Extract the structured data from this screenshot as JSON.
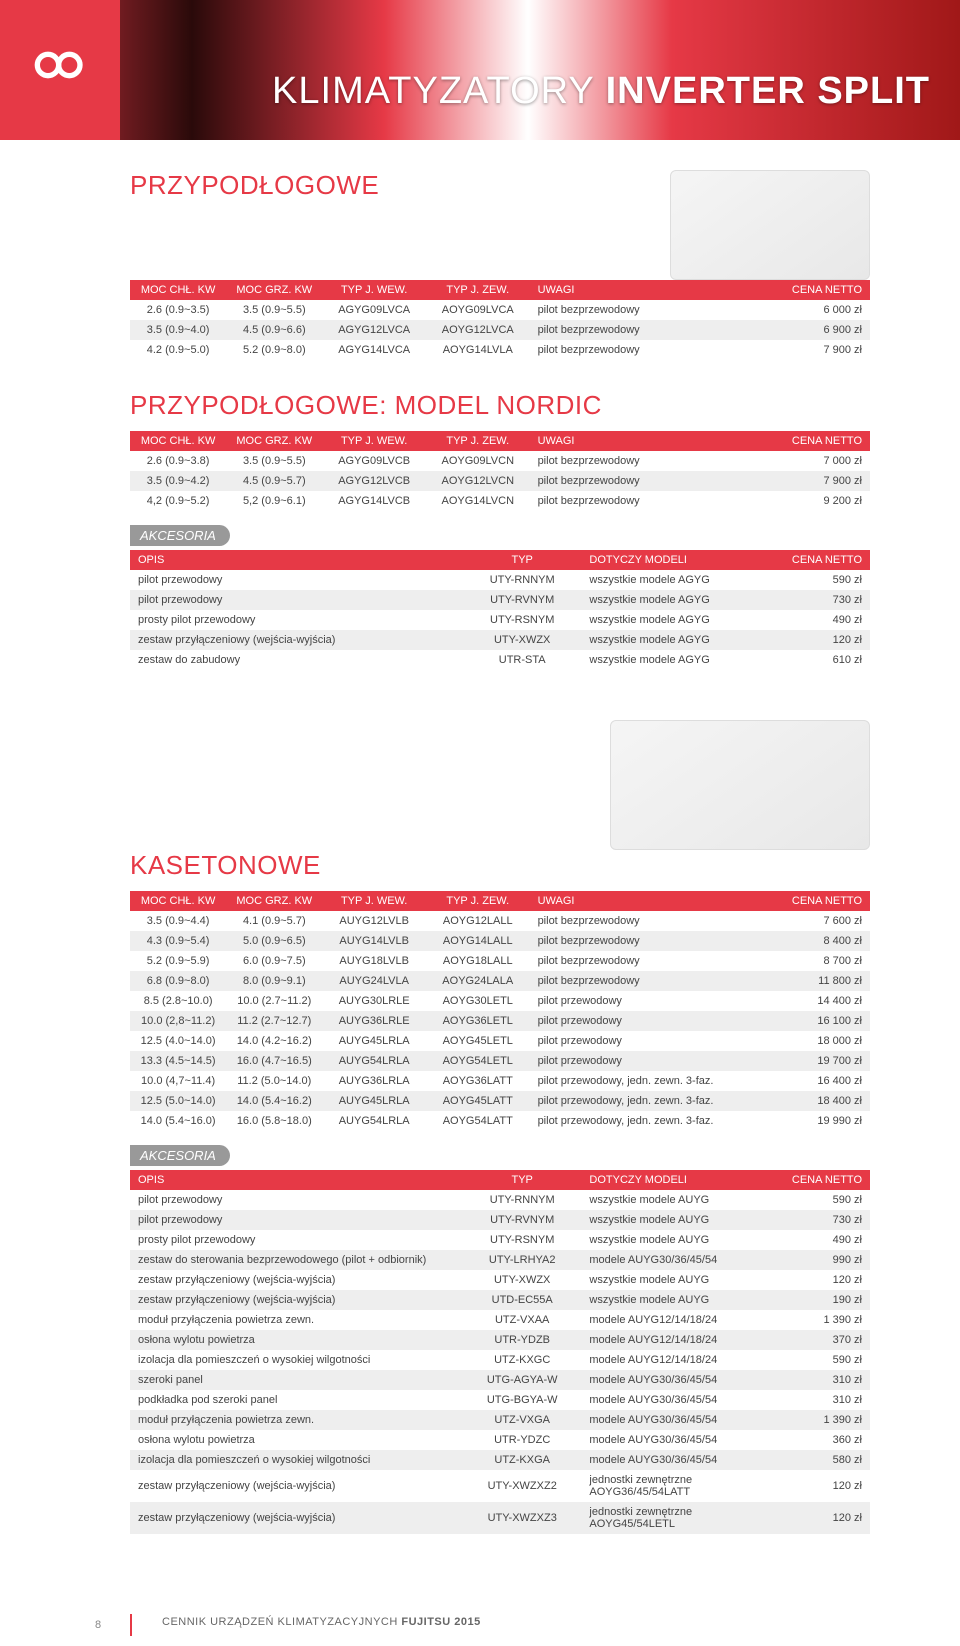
{
  "page_title_light": "KLIMATYZATORY ",
  "page_title_bold": "INVERTER SPLIT",
  "accent_color": "#e63946",
  "header_bg": "#e63946",
  "row_alt_bg": "#eeeeee",
  "page_number": "8",
  "footer_text_light": "CENNIK URZĄDZEŃ KLIMATYZACYJNYCH ",
  "footer_text_bold": "FUJITSU 2015",
  "accessories_label": "AKCESORIA",
  "przypod": {
    "title": "PRZYPODŁOGOWE",
    "columns": [
      "MOC CHŁ. KW",
      "MOC GRZ. KW",
      "TYP J. WEW.",
      "TYP J. ZEW.",
      "UWAGI",
      "CENA NETTO"
    ],
    "rows": [
      [
        "2.6 (0.9~3.5)",
        "3.5 (0.9~5.5)",
        "AGYG09LVCA",
        "AOYG09LVCA",
        "pilot bezprzewodowy",
        "6 000 zł"
      ],
      [
        "3.5 (0.9~4.0)",
        "4.5 (0.9~6.6)",
        "AGYG12LVCA",
        "AOYG12LVCA",
        "pilot bezprzewodowy",
        "6 900 zł"
      ],
      [
        "4.2 (0.9~5.0)",
        "5.2 (0.9~8.0)",
        "AGYG14LVCA",
        "AOYG14LVLA",
        "pilot bezprzewodowy",
        "7 900 zł"
      ]
    ]
  },
  "nordic": {
    "title": "PRZYPODŁOGOWE: MODEL NORDIC",
    "columns": [
      "MOC CHŁ. KW",
      "MOC GRZ. KW",
      "TYP J. WEW.",
      "TYP J. ZEW.",
      "UWAGI",
      "CENA NETTO"
    ],
    "rows": [
      [
        "2.6 (0.9~3.8)",
        "3.5 (0.9~5.5)",
        "AGYG09LVCB",
        "AOYG09LVCN",
        "pilot bezprzewodowy",
        "7 000 zł"
      ],
      [
        "3.5 (0.9~4.2)",
        "4.5 (0.9~5.7)",
        "AGYG12LVCB",
        "AOYG12LVCN",
        "pilot bezprzewodowy",
        "7 900 zł"
      ],
      [
        "4,2 (0.9~5.2)",
        "5,2 (0.9~6.1)",
        "AGYG14LVCB",
        "AOYG14LVCN",
        "pilot bezprzewodowy",
        "9 200 zł"
      ]
    ]
  },
  "nordic_acc": {
    "columns": [
      "OPIS",
      "TYP",
      "DOTYCZY MODELI",
      "CENA NETTO"
    ],
    "rows": [
      [
        "pilot przewodowy",
        "UTY-RNNYM",
        "wszystkie modele AGYG",
        "590 zł"
      ],
      [
        "pilot przewodowy",
        "UTY-RVNYM",
        "wszystkie modele AGYG",
        "730 zł"
      ],
      [
        "prosty pilot przewodowy",
        "UTY-RSNYM",
        "wszystkie modele AGYG",
        "490 zł"
      ],
      [
        "zestaw przyłączeniowy (wejścia-wyjścia)",
        "UTY-XWZX",
        "wszystkie modele AGYG",
        "120 zł"
      ],
      [
        "zestaw do zabudowy",
        "UTR-STA",
        "wszystkie modele AGYG",
        "610 zł"
      ]
    ]
  },
  "kaseton": {
    "title": "KASETONOWE",
    "columns": [
      "MOC CHŁ. KW",
      "MOC GRZ. KW",
      "TYP J. WEW.",
      "TYP J. ZEW.",
      "UWAGI",
      "CENA NETTO"
    ],
    "rows": [
      [
        "3.5 (0.9~4.4)",
        "4.1 (0.9~5.7)",
        "AUYG12LVLB",
        "AOYG12LALL",
        "pilot bezprzewodowy",
        "7 600 zł"
      ],
      [
        "4.3 (0.9~5.4)",
        "5.0 (0.9~6.5)",
        "AUYG14LVLB",
        "AOYG14LALL",
        "pilot bezprzewodowy",
        "8 400 zł"
      ],
      [
        "5.2 (0.9~5.9)",
        "6.0 (0.9~7.5)",
        "AUYG18LVLB",
        "AOYG18LALL",
        "pilot bezprzewodowy",
        "8 700 zł"
      ],
      [
        "6.8 (0.9~8.0)",
        "8.0 (0.9~9.1)",
        "AUYG24LVLA",
        "AOYG24LALA",
        "pilot bezprzewodowy",
        "11 800 zł"
      ],
      [
        "8.5 (2.8~10.0)",
        "10.0 (2.7~11.2)",
        "AUYG30LRLE",
        "AOYG30LETL",
        "pilot przewodowy",
        "14 400 zł"
      ],
      [
        "10.0 (2,8~11.2)",
        "11.2 (2.7~12.7)",
        "AUYG36LRLE",
        "AOYG36LETL",
        "pilot przewodowy",
        "16 100 zł"
      ],
      [
        "12.5 (4.0~14.0)",
        "14.0 (4.2~16.2)",
        "AUYG45LRLA",
        "AOYG45LETL",
        "pilot przewodowy",
        "18 000 zł"
      ],
      [
        "13.3 (4.5~14.5)",
        "16.0 (4.7~16.5)",
        "AUYG54LRLA",
        "AOYG54LETL",
        "pilot przewodowy",
        "19 700 zł"
      ],
      [
        "10.0 (4,7~11.4)",
        "11.2 (5.0~14.0)",
        "AUYG36LRLA",
        "AOYG36LATT",
        "pilot przewodowy, jedn. zewn. 3-faz.",
        "16 400 zł"
      ],
      [
        "12.5 (5.0~14.0)",
        "14.0 (5.4~16.2)",
        "AUYG45LRLA",
        "AOYG45LATT",
        "pilot przewodowy, jedn. zewn. 3-faz.",
        "18 400 zł"
      ],
      [
        "14.0 (5.4~16.0)",
        "16.0 (5.8~18.0)",
        "AUYG54LRLA",
        "AOYG54LATT",
        "pilot przewodowy, jedn. zewn. 3-faz.",
        "19 990 zł"
      ]
    ]
  },
  "kaseton_acc": {
    "columns": [
      "OPIS",
      "TYP",
      "DOTYCZY MODELI",
      "CENA NETTO"
    ],
    "rows": [
      [
        "pilot przewodowy",
        "UTY-RNNYM",
        "wszystkie modele AUYG",
        "590 zł"
      ],
      [
        "pilot przewodowy",
        "UTY-RVNYM",
        "wszystkie modele AUYG",
        "730 zł"
      ],
      [
        "prosty pilot przewodowy",
        "UTY-RSNYM",
        "wszystkie modele AUYG",
        "490 zł"
      ],
      [
        "zestaw do sterowania bezprzewodowego (pilot + odbiornik)",
        "UTY-LRHYA2",
        "modele AUYG30/36/45/54",
        "990 zł"
      ],
      [
        "zestaw przyłączeniowy (wejścia-wyjścia)",
        "UTY-XWZX",
        "wszystkie modele AUYG",
        "120 zł"
      ],
      [
        "zestaw przyłączeniowy (wejścia-wyjścia)",
        "UTD-EC55A",
        "wszystkie modele AUYG",
        "190 zł"
      ],
      [
        "moduł przyłączenia powietrza zewn.",
        "UTZ-VXAA",
        "modele AUYG12/14/18/24",
        "1 390 zł"
      ],
      [
        "osłona wylotu powietrza",
        "UTR-YDZB",
        "modele AUYG12/14/18/24",
        "370 zł"
      ],
      [
        "izolacja dla pomieszczeń o wysokiej wilgotności",
        "UTZ-KXGC",
        "modele AUYG12/14/18/24",
        "590 zł"
      ],
      [
        "szeroki panel",
        "UTG-AGYA-W",
        "modele AUYG30/36/45/54",
        "310 zł"
      ],
      [
        "podkładka pod szeroki panel",
        "UTG-BGYA-W",
        "modele AUYG30/36/45/54",
        "310 zł"
      ],
      [
        "moduł przyłączenia powietrza zewn.",
        "UTZ-VXGA",
        "modele AUYG30/36/45/54",
        "1 390 zł"
      ],
      [
        "osłona wylotu powietrza",
        "UTR-YDZC",
        "modele AUYG30/36/45/54",
        "360 zł"
      ],
      [
        "izolacja dla pomieszczeń o wysokiej wilgotności",
        "UTZ-KXGA",
        "modele AUYG30/36/45/54",
        "580 zł"
      ],
      [
        "zestaw przyłączeniowy (wejścia-wyjścia)",
        "UTY-XWZXZ2",
        "jednostki zewnętrzne AOYG36/45/54LATT",
        "120 zł"
      ],
      [
        "zestaw przyłączeniowy (wejścia-wyjścia)",
        "UTY-XWZXZ3",
        "jednostki zewnętrzne AOYG45/54LETL",
        "120 zł"
      ]
    ]
  },
  "col_widths_6": [
    "13%",
    "13%",
    "14%",
    "14%",
    "34%",
    "12%"
  ],
  "col_widths_4": [
    "45%",
    "16%",
    "27%",
    "12%"
  ],
  "col_align_6": [
    "center",
    "center",
    "center",
    "center",
    "left",
    "right"
  ],
  "col_align_4": [
    "left",
    "center",
    "left",
    "right"
  ]
}
